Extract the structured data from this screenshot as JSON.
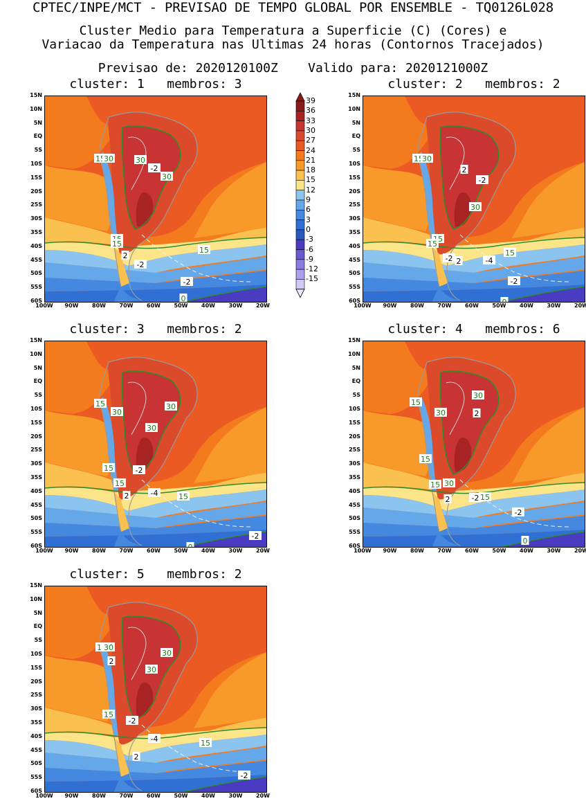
{
  "header": {
    "title": "CPTEC/INPE/MCT - PREVISAO DE TEMPO GLOBAL POR ENSEMBLE - TQ0126L028",
    "subtitle1": "Cluster Medio para Temperatura a Superficie (C) (Cores) e",
    "subtitle2": "Variacao da Temperatura nas Ultimas 24 horas (Contornos Tracejados)",
    "forecast": "Previsao de: 2020120100Z    Valido para: 2020121000Z"
  },
  "axes": {
    "lat_labels": [
      "15N",
      "10N",
      "5N",
      "EQ",
      "5S",
      "10S",
      "15S",
      "20S",
      "25S",
      "30S",
      "35S",
      "40S",
      "45S",
      "50S",
      "55S",
      "60S"
    ],
    "lon_labels": [
      "100W",
      "90W",
      "80W",
      "70W",
      "60W",
      "50W",
      "40W",
      "30W",
      "20W"
    ]
  },
  "colorbar": {
    "labels": [
      "39",
      "36",
      "33",
      "30",
      "27",
      "24",
      "21",
      "18",
      "15",
      "12",
      "9",
      "6",
      "3",
      "0",
      "-3",
      "-6",
      "-9",
      "-12",
      "-15"
    ],
    "colors": [
      "#8b1a1a",
      "#a82424",
      "#c83434",
      "#dc4a2c",
      "#ec5a24",
      "#f47a1e",
      "#f89a2a",
      "#fac050",
      "#fce488",
      "#8cc4f0",
      "#64a8ea",
      "#4488e0",
      "#3070d4",
      "#2858c0",
      "#4a3cc0",
      "#6a5ad0",
      "#8a7ce0",
      "#aca0ec",
      "#d2c8f6"
    ]
  },
  "panels": [
    {
      "title": "cluster: 1   membros: 3",
      "labels": [
        "15",
        "30",
        "30",
        "-2",
        "30",
        "15",
        "15",
        "2",
        "-2",
        "15",
        "-2",
        "0"
      ]
    },
    {
      "title": "cluster: 2   membros: 2",
      "labels": [
        "15",
        "30",
        "2",
        "-2",
        "30",
        "15",
        "15",
        "-2",
        "2",
        "15",
        "-4",
        "-2",
        "0"
      ]
    },
    {
      "title": "cluster: 3   membros: 2",
      "labels": [
        "15",
        "30",
        "30",
        "30",
        "-2",
        "15",
        "15",
        "2",
        "-4",
        "15",
        "-2",
        "0"
      ]
    },
    {
      "title": "cluster: 4   membros: 6",
      "labels": [
        "15",
        "30",
        "30",
        "2",
        "15",
        "15",
        "30",
        "2",
        "-2",
        "15",
        "-2",
        "0"
      ]
    },
    {
      "title": "cluster: 5   membros: 2",
      "labels": [
        "15",
        "30",
        "2",
        "30",
        "30",
        "15",
        "-2",
        "-4",
        "15",
        "2",
        "-2"
      ]
    }
  ]
}
